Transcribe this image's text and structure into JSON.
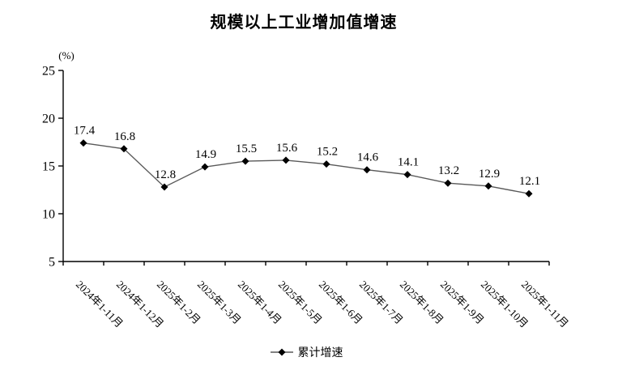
{
  "chart_data": {
    "type": "line",
    "title": "规模以上工业增加值增速",
    "unit_label": "(%)",
    "categories": [
      "2024年1-11月",
      "2024年1-12月",
      "2025年1-2月",
      "2025年1-3月",
      "2025年1-4月",
      "2025年1-5月",
      "2025年1-6月",
      "2025年1-7月",
      "2025年1-8月",
      "2025年1-9月",
      "2025年1-10月",
      "2025年1-11月"
    ],
    "series": [
      {
        "name": "累计增速",
        "values": [
          17.4,
          16.8,
          12.8,
          14.9,
          15.5,
          15.6,
          15.2,
          14.6,
          14.1,
          13.2,
          12.9,
          12.1
        ]
      }
    ],
    "ylim": [
      5,
      25
    ],
    "yticks": [
      5,
      10,
      15,
      20,
      25
    ],
    "xlabel": "",
    "ylabel": "(%)",
    "grid": false,
    "legend_position": "bottom",
    "colors": {
      "line": "#595959",
      "marker": "#000000",
      "axis": "#000000",
      "text": "#000000",
      "background": "#ffffff"
    }
  },
  "legend": {
    "label": "累计增速"
  }
}
